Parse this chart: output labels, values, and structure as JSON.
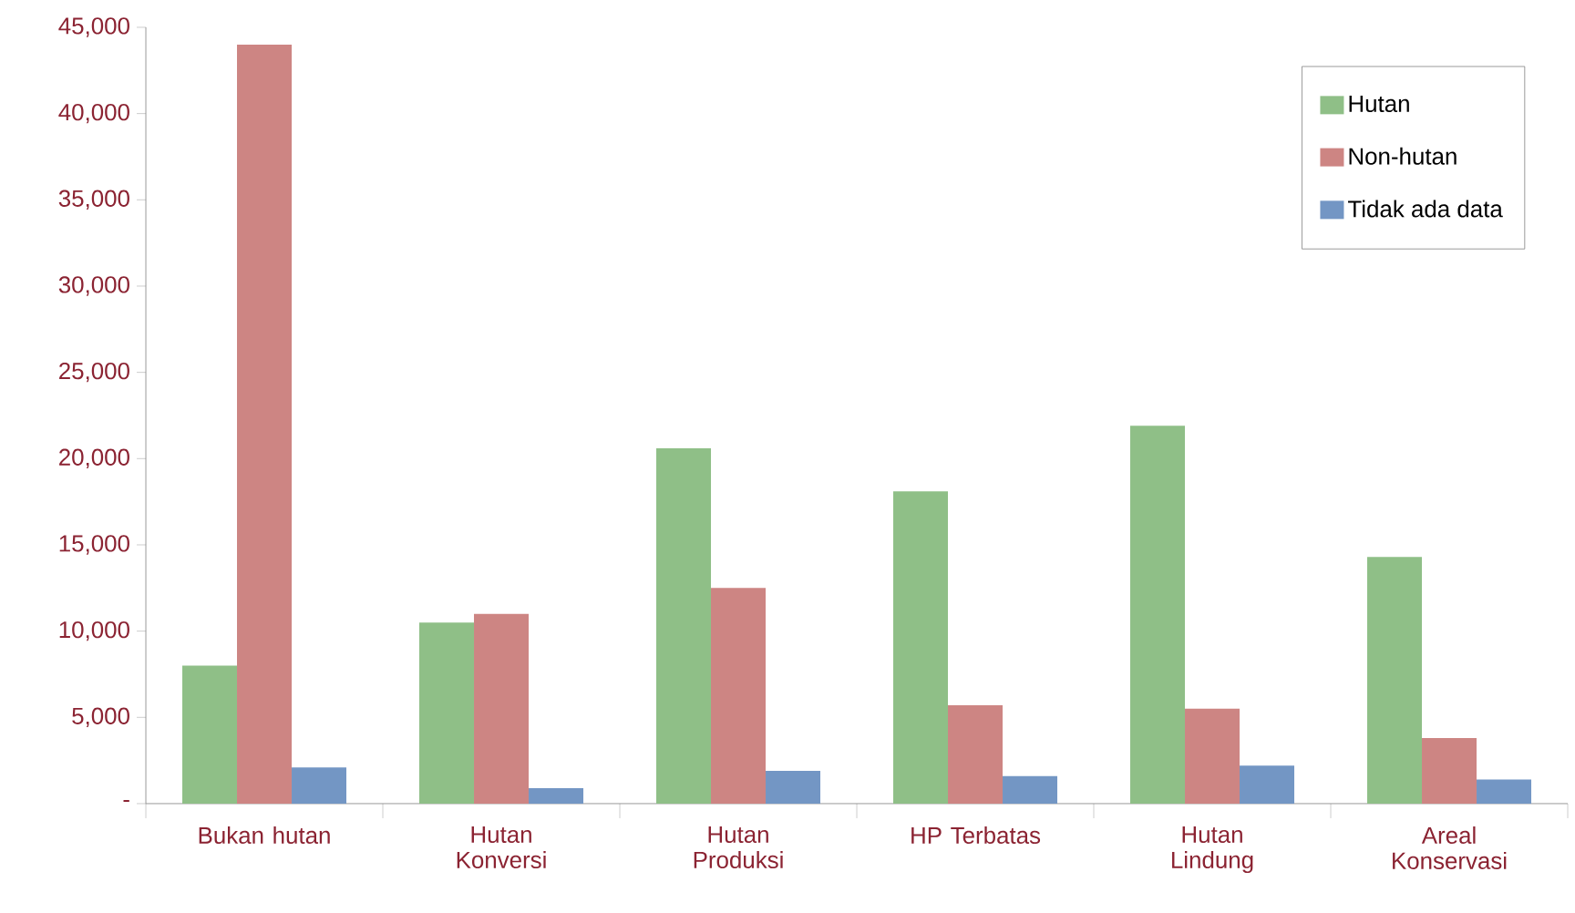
{
  "chart_data": {
    "type": "bar",
    "categories": [
      "Bukan hutan",
      "Hutan Konversi",
      "Hutan Produksi",
      "HP Terbatas",
      "Hutan Lindung",
      "Areal Konservasi"
    ],
    "series": [
      {
        "name": "Hutan",
        "color": "#8fbf87",
        "values": [
          8000,
          10500,
          20600,
          18100,
          21900,
          14300
        ]
      },
      {
        "name": "Non-hutan",
        "color": "#cd8583",
        "values": [
          44000,
          11000,
          12500,
          5700,
          5500,
          3800
        ]
      },
      {
        "name": "Tidak ada data",
        "color": "#7396c4",
        "values": [
          2100,
          900,
          1900,
          1600,
          2200,
          1400
        ]
      }
    ],
    "ylim": [
      0,
      45000
    ],
    "yticks": [
      {
        "value": 0,
        "label": "-"
      },
      {
        "value": 5000,
        "label": "5,000"
      },
      {
        "value": 10000,
        "label": "10,000"
      },
      {
        "value": 15000,
        "label": "15,000"
      },
      {
        "value": 20000,
        "label": "20,000"
      },
      {
        "value": 25000,
        "label": "25,000"
      },
      {
        "value": 30000,
        "label": "30,000"
      },
      {
        "value": 35000,
        "label": "35,000"
      },
      {
        "value": 40000,
        "label": "40,000"
      },
      {
        "value": 45000,
        "label": "45,000"
      }
    ],
    "grid": false,
    "legend": "top right"
  }
}
